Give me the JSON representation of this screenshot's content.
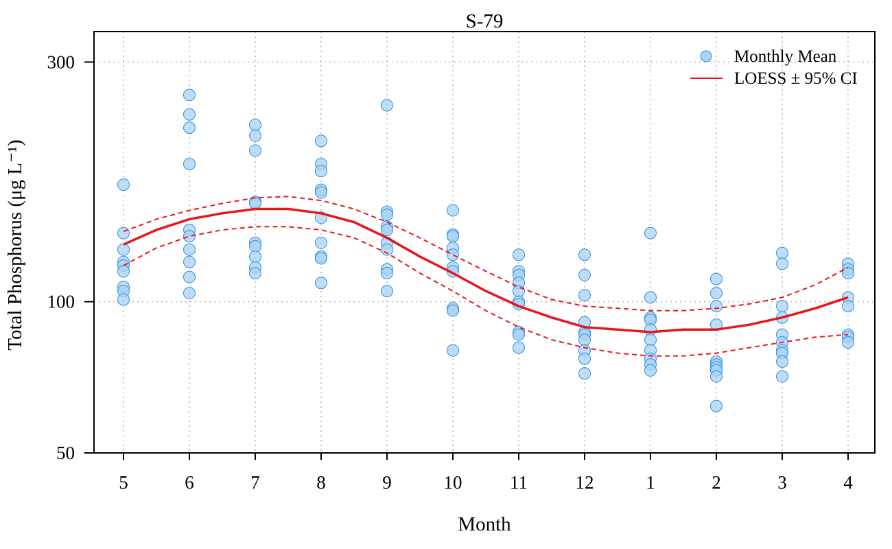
{
  "chart_data": {
    "type": "scatter",
    "title": "S-79",
    "xlabel": "Month",
    "ylabel": "Total Phosphorus (μg L⁻¹)",
    "y_scale": "log",
    "ylim": [
      50,
      345
    ],
    "y_ticks": [
      50,
      100,
      300
    ],
    "y_gridlines": [
      100,
      300
    ],
    "grid": true,
    "categories": [
      "5",
      "6",
      "7",
      "8",
      "9",
      "10",
      "11",
      "12",
      "1",
      "2",
      "3",
      "4"
    ],
    "legend": {
      "position": "top-right",
      "entries": [
        {
          "label": "Monthly Mean",
          "symbol": "circle"
        },
        {
          "label": "LOESS ± 95% CI",
          "symbol": "line"
        }
      ]
    },
    "colors": {
      "point_fill": "#a9d2f3",
      "point_stroke": "#2d8fe0",
      "loess": "#e8161b",
      "grid": "#b3b3b3"
    },
    "series": [
      {
        "name": "Monthly Mean",
        "kind": "points",
        "points": [
          [
            "5",
            171
          ],
          [
            "5",
            137
          ],
          [
            "5",
            127
          ],
          [
            "5",
            120
          ],
          [
            "5",
            118
          ],
          [
            "5",
            115
          ],
          [
            "5",
            107
          ],
          [
            "5",
            105
          ],
          [
            "5",
            101
          ],
          [
            "6",
            258
          ],
          [
            "6",
            236
          ],
          [
            "6",
            222
          ],
          [
            "6",
            188
          ],
          [
            "6",
            139
          ],
          [
            "6",
            135
          ],
          [
            "6",
            127
          ],
          [
            "6",
            120
          ],
          [
            "6",
            112
          ],
          [
            "6",
            104
          ],
          [
            "7",
            225
          ],
          [
            "7",
            214
          ],
          [
            "7",
            200
          ],
          [
            "7",
            158
          ],
          [
            "7",
            157
          ],
          [
            "7",
            131
          ],
          [
            "7",
            129
          ],
          [
            "7",
            123
          ],
          [
            "7",
            117
          ],
          [
            "7",
            114
          ],
          [
            "8",
            209
          ],
          [
            "8",
            188
          ],
          [
            "8",
            182
          ],
          [
            "8",
            167
          ],
          [
            "8",
            165
          ],
          [
            "8",
            147
          ],
          [
            "8",
            131
          ],
          [
            "8",
            123
          ],
          [
            "8",
            122
          ],
          [
            "8",
            109
          ],
          [
            "9",
            246
          ],
          [
            "9",
            151
          ],
          [
            "9",
            149
          ],
          [
            "9",
            141
          ],
          [
            "9",
            139
          ],
          [
            "9",
            131
          ],
          [
            "9",
            127
          ],
          [
            "9",
            116
          ],
          [
            "9",
            114
          ],
          [
            "9",
            105
          ],
          [
            "10",
            152
          ],
          [
            "10",
            136
          ],
          [
            "10",
            135
          ],
          [
            "10",
            128
          ],
          [
            "10",
            124
          ],
          [
            "10",
            117
          ],
          [
            "10",
            115
          ],
          [
            "10",
            97
          ],
          [
            "10",
            96
          ],
          [
            "10",
            80
          ],
          [
            "11",
            124
          ],
          [
            "11",
            115
          ],
          [
            "11",
            113
          ],
          [
            "11",
            109
          ],
          [
            "11",
            105
          ],
          [
            "11",
            100
          ],
          [
            "11",
            99
          ],
          [
            "11",
            87
          ],
          [
            "11",
            86
          ],
          [
            "11",
            81
          ],
          [
            "12",
            124
          ],
          [
            "12",
            113
          ],
          [
            "12",
            103
          ],
          [
            "12",
            91
          ],
          [
            "12",
            87
          ],
          [
            "12",
            86
          ],
          [
            "12",
            84
          ],
          [
            "12",
            80
          ],
          [
            "12",
            77
          ],
          [
            "12",
            72
          ],
          [
            "1",
            137
          ],
          [
            "1",
            102
          ],
          [
            "1",
            93
          ],
          [
            "1",
            92
          ],
          [
            "1",
            88
          ],
          [
            "1",
            84
          ],
          [
            "1",
            80
          ],
          [
            "1",
            77
          ],
          [
            "1",
            75
          ],
          [
            "1",
            73
          ],
          [
            "2",
            111
          ],
          [
            "2",
            104
          ],
          [
            "2",
            98
          ],
          [
            "2",
            90
          ],
          [
            "2",
            76
          ],
          [
            "2",
            75
          ],
          [
            "2",
            74
          ],
          [
            "2",
            73
          ],
          [
            "2",
            71
          ],
          [
            "2",
            62
          ],
          [
            "3",
            125
          ],
          [
            "3",
            119
          ],
          [
            "3",
            98
          ],
          [
            "3",
            93
          ],
          [
            "3",
            86
          ],
          [
            "3",
            83
          ],
          [
            "3",
            80
          ],
          [
            "3",
            79
          ],
          [
            "3",
            76
          ],
          [
            "3",
            71
          ],
          [
            "4",
            119
          ],
          [
            "4",
            116
          ],
          [
            "4",
            114
          ],
          [
            "4",
            102
          ],
          [
            "4",
            98
          ],
          [
            "4",
            86
          ],
          [
            "4",
            85
          ],
          [
            "4",
            83
          ]
        ]
      },
      {
        "name": "LOESS ± 95% CI",
        "kind": "line",
        "x": [
          1,
          1.5,
          2,
          2.5,
          3,
          3.5,
          4,
          4.5,
          5,
          5.5,
          6,
          6.5,
          7,
          7.5,
          8,
          8.5,
          9,
          9.5,
          10,
          10.5,
          11,
          11.5,
          12
        ],
        "fit": [
          130,
          139,
          146,
          150,
          153,
          153,
          150,
          144,
          134,
          123,
          114,
          105,
          98,
          93,
          89,
          88,
          87,
          88,
          88,
          90,
          93,
          97,
          102
        ],
        "upper": [
          138,
          146,
          152,
          157,
          161,
          162,
          159,
          153,
          144,
          134,
          124,
          115,
          107,
          101,
          98,
          97,
          96,
          96,
          97,
          99,
          102,
          108,
          117
        ],
        "lower": [
          118,
          128,
          135,
          139,
          141,
          141,
          139,
          134,
          125,
          114,
          105,
          96,
          89,
          84,
          81,
          79,
          78,
          78,
          79,
          81,
          83,
          85,
          86
        ]
      }
    ]
  }
}
